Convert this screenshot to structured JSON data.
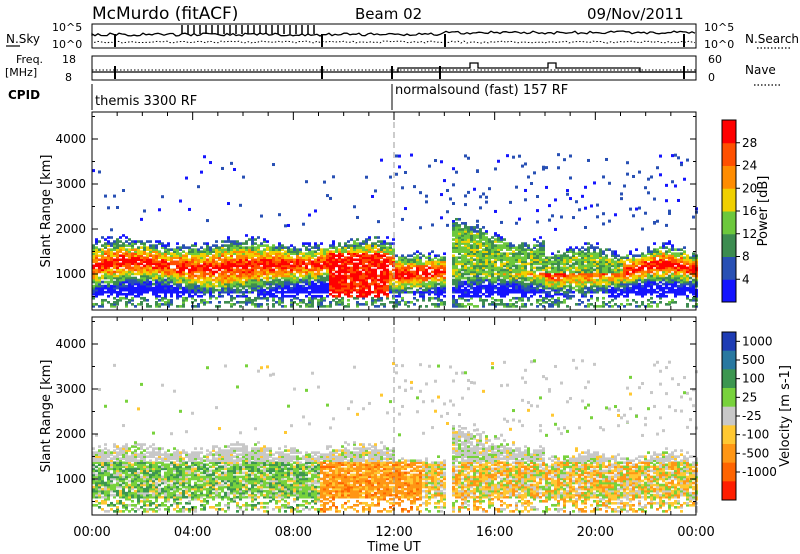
{
  "header": {
    "station": "McMurdo (fitACF)",
    "beam": "Beam 02",
    "date": "09/Nov/2011"
  },
  "sky_panel": {
    "left_label": "N.Sky",
    "left_ticks": [
      "10^5",
      "10^0"
    ],
    "right_ticks": [
      "10^5",
      "10^0"
    ],
    "right_label": "N.Search"
  },
  "freq_panel": {
    "left_label_1": "Freq.",
    "left_label_2": "[MHz]",
    "left_ticks": [
      "18",
      "8"
    ],
    "right_ticks": [
      "60",
      "0"
    ],
    "right_label": "Nave"
  },
  "cpid": {
    "label": "CPID",
    "segments": [
      "themis 3300 RF",
      "normalsound (fast) 157 RF"
    ]
  },
  "chart_data": [
    {
      "type": "heatmap",
      "ylabel": "Slant Range [km]",
      "yticks": [
        "1000",
        "2000",
        "3000",
        "4000"
      ],
      "colorbar_label": "Power [dB]",
      "colorbar_ticks": [
        "4",
        "8",
        "12",
        "16",
        "20",
        "24",
        "28"
      ],
      "colorbar_colors": [
        "#1414ff",
        "#2850b4",
        "#3c8c50",
        "#6cc83c",
        "#f0d000",
        "#ff8c00",
        "#ff5000",
        "#ff0000"
      ],
      "ylim": [
        200,
        4600
      ]
    },
    {
      "type": "heatmap",
      "ylabel": "Slant Range [km]",
      "yticks": [
        "1000",
        "2000",
        "3000",
        "4000"
      ],
      "colorbar_label": "Velocity [m s-1]",
      "colorbar_ticks": [
        "1000",
        "500",
        "100",
        "25",
        "-25",
        "-100",
        "-500",
        "-1000"
      ],
      "colorbar_colors": [
        "#1e3cb4",
        "#2878a0",
        "#3c9650",
        "#78d23c",
        "#c8c8c8",
        "#ffc832",
        "#ff9614",
        "#ff6400",
        "#ff1e00"
      ],
      "ylim": [
        200,
        4600
      ]
    }
  ],
  "time_axis": {
    "label": "Time UT",
    "ticks": [
      "00:00",
      "04:00",
      "08:00",
      "12:00",
      "16:00",
      "20:00",
      "00:00"
    ]
  }
}
